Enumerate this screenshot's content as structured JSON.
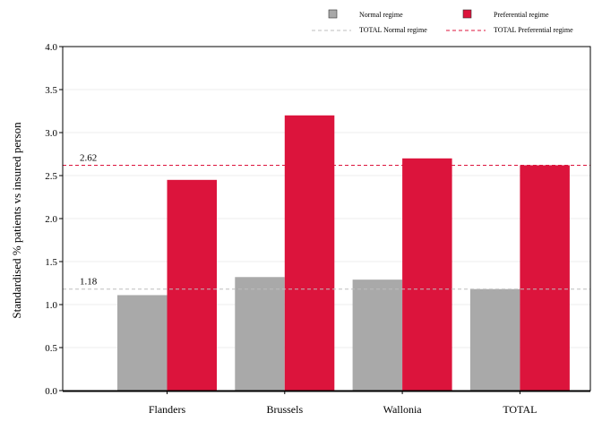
{
  "chart_data": {
    "type": "bar",
    "ylabel": "Standardised % patients vs insured person",
    "xlabel": "",
    "ylim": [
      0,
      4.0
    ],
    "yticks": [
      "0.0",
      "0.5",
      "1.0",
      "1.5",
      "2.0",
      "2.5",
      "3.0",
      "3.5",
      "4.0"
    ],
    "categories": [
      "Flanders",
      "Brussels",
      "Wallonia",
      "TOTAL"
    ],
    "series": [
      {
        "name": "Normal regime",
        "color": "#a9a9a9",
        "values": [
          1.11,
          1.32,
          1.29,
          1.18
        ]
      },
      {
        "name": "Preferential regime",
        "color": "#dc143c",
        "values": [
          2.45,
          3.2,
          2.7,
          2.62
        ]
      }
    ],
    "reference_lines": [
      {
        "name": "TOTAL Normal regime",
        "value": 1.18,
        "label": "1.18",
        "color": "#bdbdbd",
        "style": "dashed"
      },
      {
        "name": "TOTAL Preferential regime",
        "value": 2.62,
        "label": "2.62",
        "color": "#dc143c",
        "style": "dashed"
      }
    ],
    "grid": true,
    "legend_position": "top-right"
  }
}
